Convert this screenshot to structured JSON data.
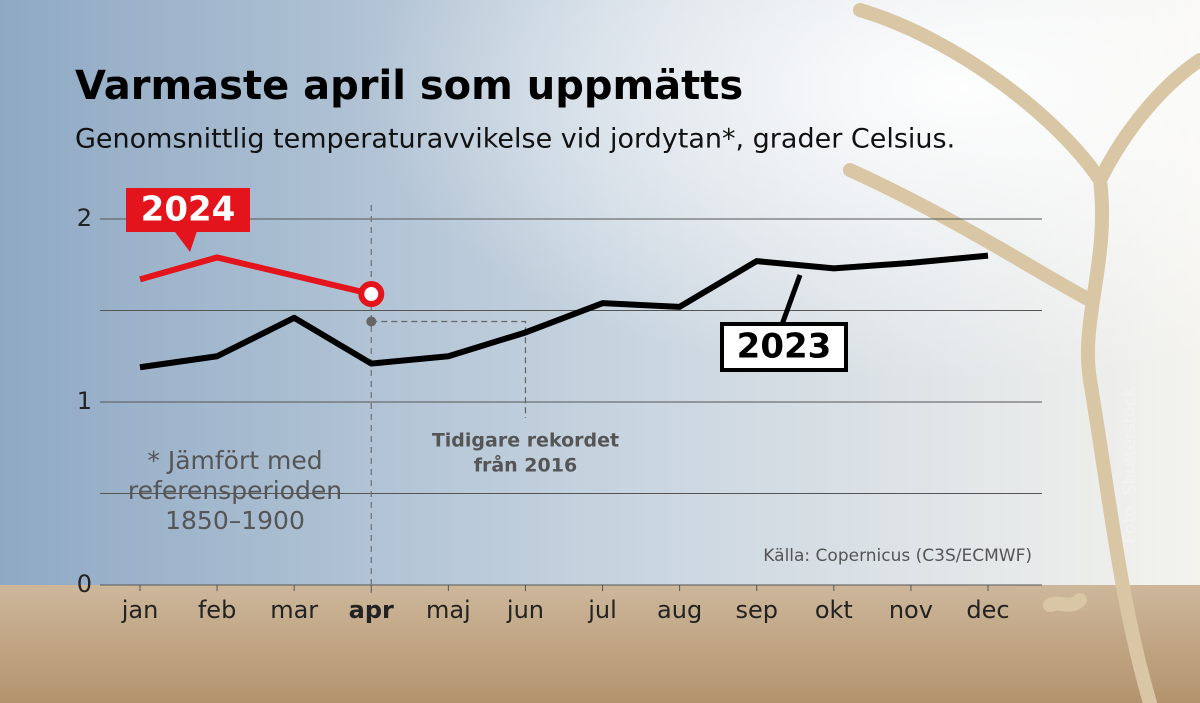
{
  "chart_data": {
    "type": "line",
    "title": "Varmaste april som uppmätts",
    "subtitle": "Genomsnittlig temperaturavvikelse vid jordytan*, grader Celsius.",
    "categories": [
      "jan",
      "feb",
      "mar",
      "apr",
      "maj",
      "jun",
      "jul",
      "aug",
      "sep",
      "okt",
      "nov",
      "dec"
    ],
    "highlight_category": 3,
    "series": [
      {
        "name": "2024",
        "color": "#e3141b",
        "values": [
          1.67,
          1.79,
          1.69,
          1.59,
          null,
          null,
          null,
          null,
          null,
          null,
          null,
          null
        ]
      },
      {
        "name": "2023",
        "color": "#000000",
        "values": [
          1.19,
          1.25,
          1.46,
          1.21,
          1.25,
          1.38,
          1.54,
          1.52,
          1.77,
          1.73,
          1.76,
          1.8
        ]
      }
    ],
    "ylim": [
      0,
      2
    ],
    "yticks": [
      0,
      1,
      2
    ],
    "grid_values": [
      0,
      0.5,
      1,
      1.5,
      2
    ],
    "record": {
      "value": 1.44,
      "lines": [
        "Tidigare rekordet",
        "från 2016"
      ]
    },
    "footnote": [
      "* Jämfört med",
      "referensperioden",
      "1850–1900"
    ],
    "source": "Källa: Copernicus (C3S/ECMWF)",
    "photo_credit": "Foto: Shutterstock"
  }
}
